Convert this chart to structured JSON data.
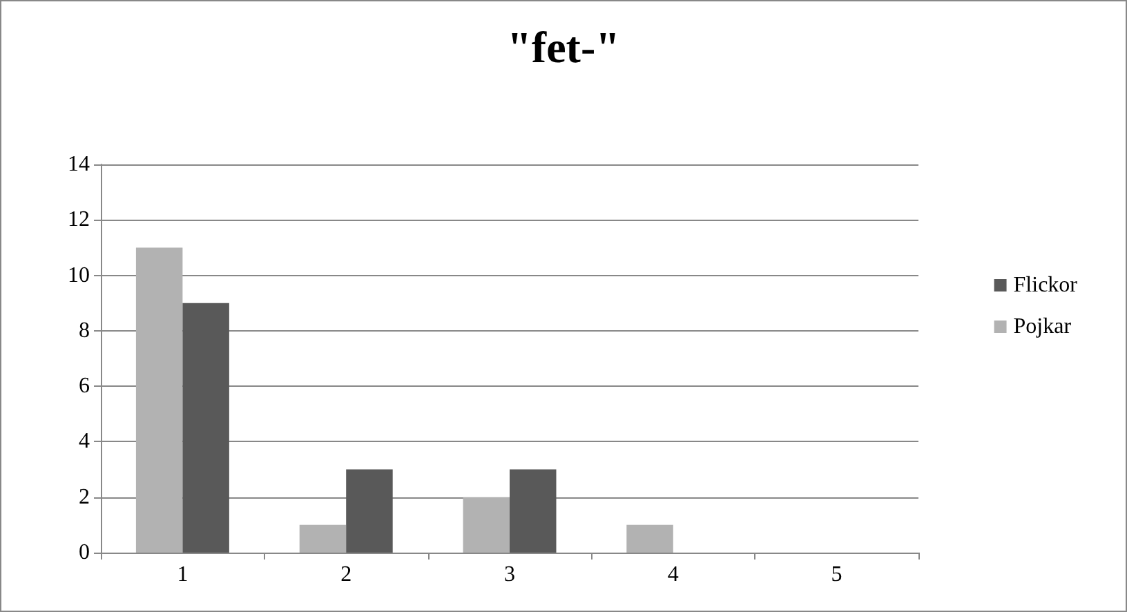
{
  "chart_data": {
    "type": "bar",
    "title": "\"fet-\"",
    "categories": [
      "1",
      "2",
      "3",
      "4",
      "5"
    ],
    "series": [
      {
        "name": "Pojkar",
        "color": "#b2b2b2",
        "values": [
          11,
          1,
          2,
          1,
          0
        ]
      },
      {
        "name": "Flickor",
        "color": "#595959",
        "values": [
          9,
          3,
          3,
          0,
          0
        ]
      }
    ],
    "ylim": [
      0,
      14
    ],
    "yticks": [
      0,
      2,
      4,
      6,
      8,
      10,
      12,
      14
    ],
    "grid": "y",
    "legend": "right"
  }
}
